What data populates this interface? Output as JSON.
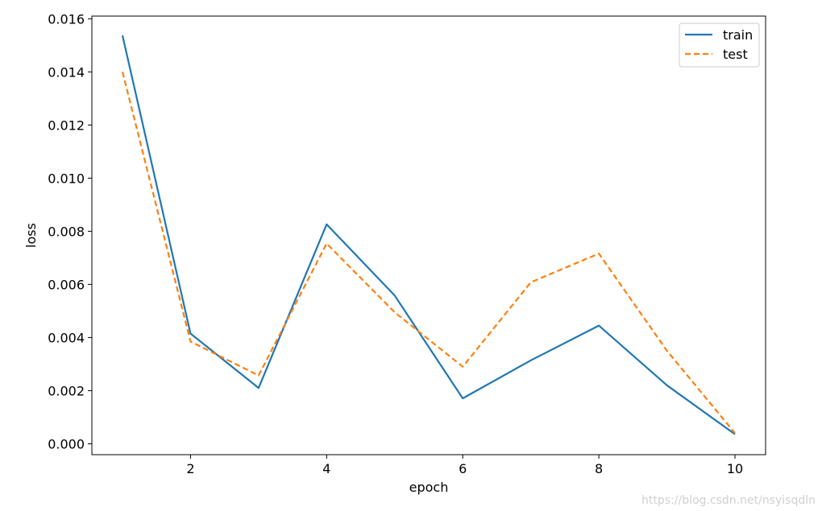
{
  "chart_data": {
    "type": "line",
    "xlabel": "epoch",
    "ylabel": "loss",
    "xlim": [
      0.55,
      10.45
    ],
    "ylim": [
      -0.00041,
      0.0161
    ],
    "xticks": [
      2,
      4,
      6,
      8,
      10
    ],
    "xtick_labels": [
      "2",
      "4",
      "6",
      "8",
      "10"
    ],
    "yticks": [
      0.0,
      0.002,
      0.004,
      0.006,
      0.008,
      0.01,
      0.012,
      0.014,
      0.016
    ],
    "ytick_labels": [
      "0.000",
      "0.002",
      "0.004",
      "0.006",
      "0.008",
      "0.010",
      "0.012",
      "0.014",
      "0.016"
    ],
    "x": [
      1,
      2,
      3,
      4,
      5,
      6,
      7,
      8,
      9,
      10
    ],
    "series": [
      {
        "name": "train",
        "color": "#1f77b4",
        "style": "solid",
        "values": [
          0.01537,
          0.00415,
          0.0021,
          0.00826,
          0.00558,
          0.00171,
          0.00314,
          0.00445,
          0.0022,
          0.00036
        ]
      },
      {
        "name": "test",
        "color": "#ff7f0e",
        "style": "dashed",
        "values": [
          0.014,
          0.00385,
          0.00257,
          0.00754,
          0.00495,
          0.0029,
          0.00608,
          0.00716,
          0.0035,
          0.0004
        ]
      }
    ],
    "grid": false,
    "legend_position": "top-right"
  },
  "watermark": "https://blog.csdn.net/nsyisqdln"
}
